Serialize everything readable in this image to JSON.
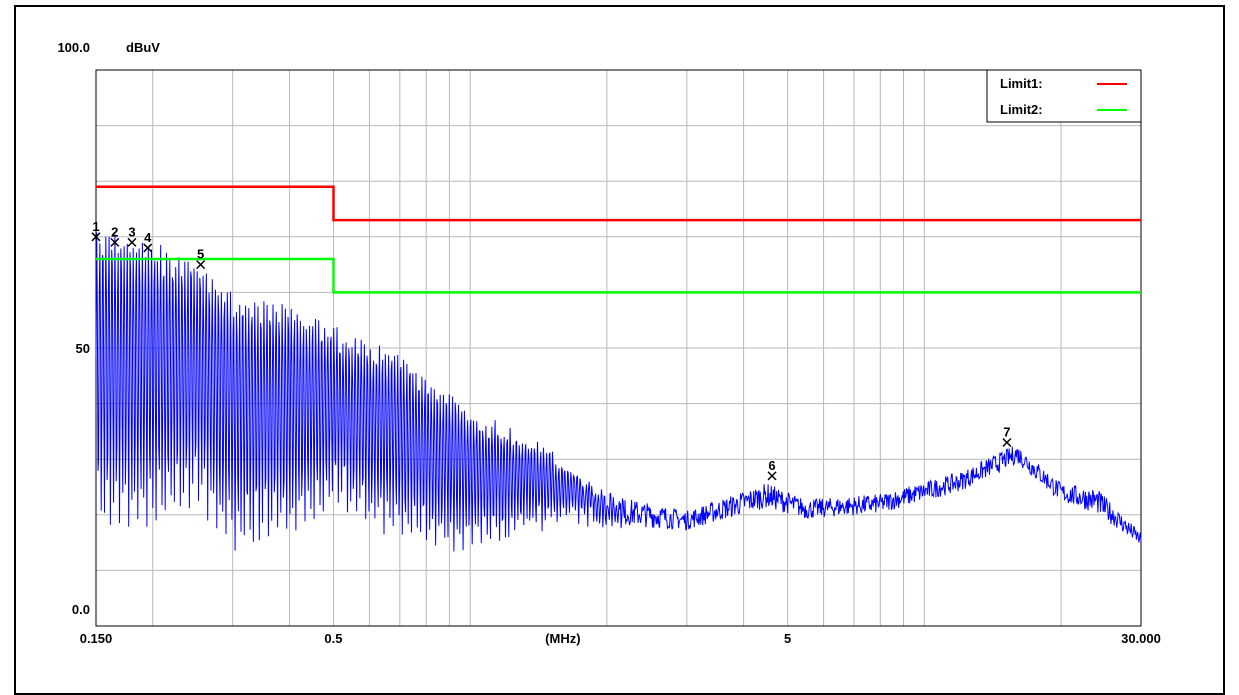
{
  "chart_data": {
    "type": "line",
    "x_scale": "log",
    "xlim": [
      0.15,
      30
    ],
    "ylim": [
      0,
      100
    ],
    "y_unit": "dBuV",
    "x_unit": "(MHz)",
    "y_tick_labels": [
      {
        "value": 100,
        "text": "100.0"
      },
      {
        "value": 50,
        "text": "50"
      },
      {
        "value": 0,
        "text": "0.0"
      }
    ],
    "x_tick_labels": [
      {
        "value": 0.15,
        "text": "0.150"
      },
      {
        "value": 0.5,
        "text": "0.5"
      },
      {
        "value": 5,
        "text": "5"
      },
      {
        "value": 30,
        "text": "30.000"
      }
    ],
    "grid": true,
    "legend_position": "top-right",
    "series": [
      {
        "name": "Limit1:",
        "color": "#ff0000",
        "points": [
          [
            0.15,
            79
          ],
          [
            0.5,
            79
          ],
          [
            0.5,
            73
          ],
          [
            30,
            73
          ]
        ]
      },
      {
        "name": "Limit2:",
        "color": "#00ff00",
        "points": [
          [
            0.15,
            66
          ],
          [
            0.5,
            66
          ],
          [
            0.5,
            60
          ],
          [
            30,
            60
          ]
        ]
      },
      {
        "color": "#0000ff",
        "envelope": [
          {
            "f": 0.15,
            "peak": 70,
            "floor": 18
          },
          {
            "f": 0.2,
            "peak": 68,
            "floor": 18
          },
          {
            "f": 0.25,
            "peak": 65,
            "floor": 22
          },
          {
            "f": 0.3,
            "peak": 59,
            "floor": 14
          },
          {
            "f": 0.4,
            "peak": 57,
            "floor": 16
          },
          {
            "f": 0.5,
            "peak": 53,
            "floor": 22
          },
          {
            "f": 0.7,
            "peak": 48,
            "floor": 16
          },
          {
            "f": 1.0,
            "peak": 38,
            "floor": 14
          },
          {
            "f": 1.5,
            "peak": 31,
            "floor": 19
          },
          {
            "f": 2.0,
            "peak": 23,
            "floor": 19
          },
          {
            "f": 3.0,
            "peak": 20,
            "floor": 18
          },
          {
            "f": 4.5,
            "peak": 25,
            "floor": 22
          },
          {
            "f": 5.5,
            "peak": 22,
            "floor": 20
          },
          {
            "f": 8.0,
            "peak": 23,
            "floor": 21
          },
          {
            "f": 12.0,
            "peak": 27,
            "floor": 25
          },
          {
            "f": 16.0,
            "peak": 32,
            "floor": 30
          },
          {
            "f": 20.0,
            "peak": 25,
            "floor": 23
          },
          {
            "f": 24.0,
            "peak": 24,
            "floor": 21
          },
          {
            "f": 30.0,
            "peak": 16,
            "floor": 15
          }
        ]
      }
    ],
    "markers": [
      {
        "label": "1",
        "f": 0.15,
        "level": 70
      },
      {
        "label": "2",
        "f": 0.165,
        "level": 69
      },
      {
        "label": "3",
        "f": 0.18,
        "level": 69
      },
      {
        "label": "4",
        "f": 0.195,
        "level": 68
      },
      {
        "label": "5",
        "f": 0.255,
        "level": 65
      },
      {
        "label": "6",
        "f": 4.62,
        "level": 27
      },
      {
        "label": "7",
        "f": 15.2,
        "level": 33
      }
    ]
  }
}
